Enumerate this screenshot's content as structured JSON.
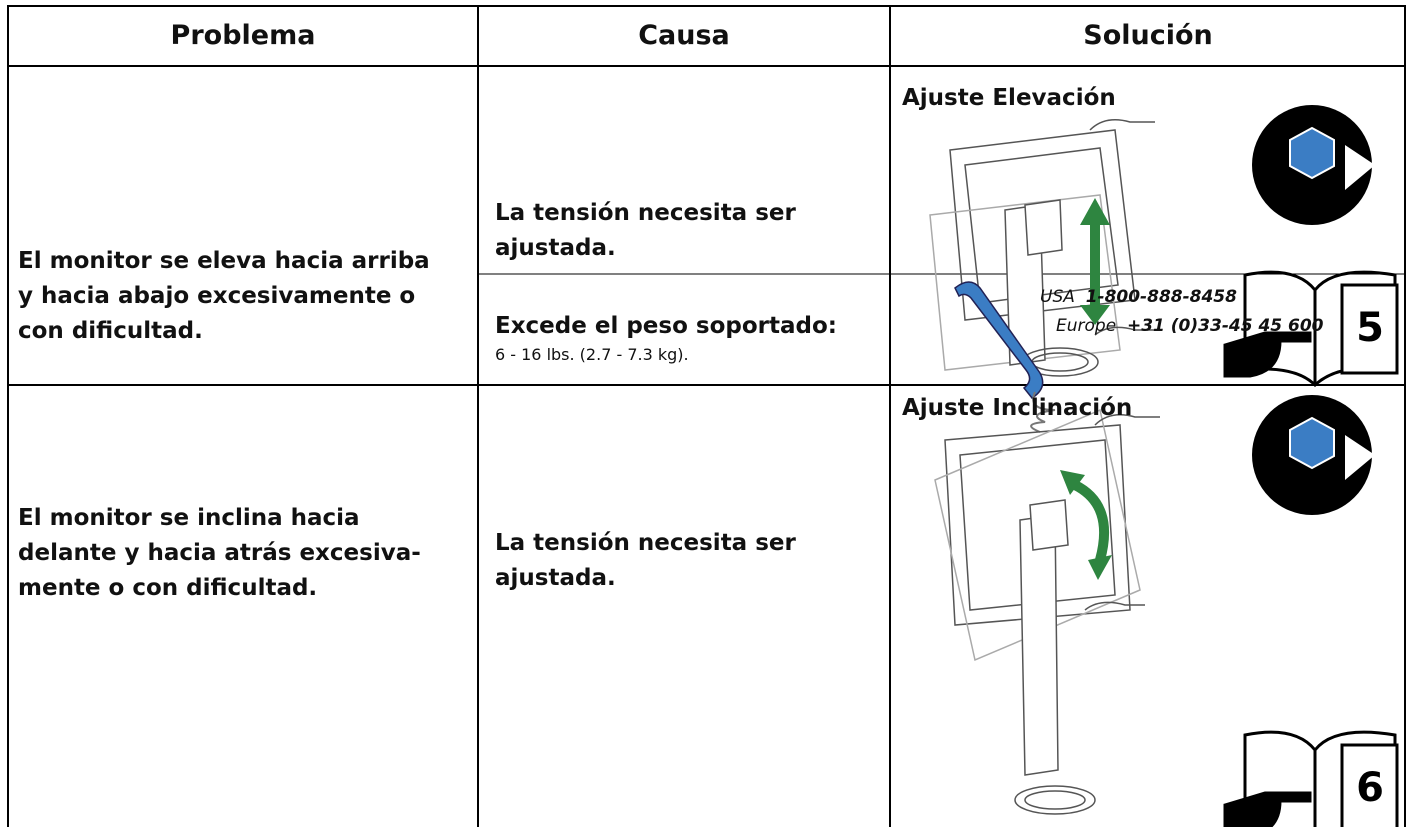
{
  "header": {
    "columns": [
      "Problema",
      "Causa",
      "Solución"
    ]
  },
  "rows": [
    {
      "problem_lines": [
        "El monitor se eleva hacia arriba",
        "y hacia abajo excesivamente o",
        "con dificultad."
      ],
      "causes": [
        {
          "cause_lines": [
            "La tensión necesita ser",
            "ajustada."
          ],
          "solution": {
            "title": "Ajuste Elevación",
            "page": "5"
          }
        },
        {
          "cause_lines": [
            "Excede el peso soportado:"
          ],
          "detail": "6 - 16 lbs. (2.7 - 7.3 kg).",
          "solution": {
            "contacts": [
              {
                "region": "USA",
                "number": "1-800-888-8458"
              },
              {
                "region": "Europe",
                "number": "+31 (0)33-45 45 600"
              }
            ]
          }
        }
      ]
    },
    {
      "problem_lines": [
        "El monitor se inclina hacia",
        "delante y hacia atrás excesiva-",
        "mente o con dificultad."
      ],
      "causes": [
        {
          "cause_lines": [
            "La tensión necesita ser",
            "ajustada."
          ],
          "solution": {
            "title": "Ajuste Inclinación",
            "page": "6"
          }
        }
      ]
    }
  ]
}
